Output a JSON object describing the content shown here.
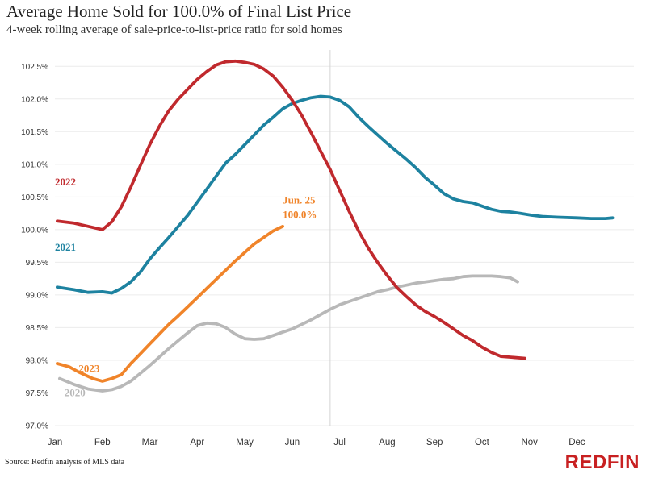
{
  "title": "Average Home Sold for 100.0% of Final List Price",
  "subtitle": "4-week rolling average of sale-price-to-list-price ratio for sold homes",
  "source": "Source: Redfin analysis of MLS data",
  "brand": {
    "name": "REDFIN",
    "color": "#c82021"
  },
  "annotation": {
    "line1": "Jun. 25",
    "line2": "100.0%",
    "color": "#f0842a"
  },
  "chart_data": {
    "type": "line",
    "ylim": [
      97.0,
      102.75
    ],
    "xlim": [
      1,
      13.2
    ],
    "y_ticks": [
      {
        "value": 97.0,
        "label": "97.0%"
      },
      {
        "value": 97.5,
        "label": "97.5%"
      },
      {
        "value": 98.0,
        "label": "98.0%"
      },
      {
        "value": 98.5,
        "label": "98.5%"
      },
      {
        "value": 99.0,
        "label": "99.0%"
      },
      {
        "value": 99.5,
        "label": "99.5%"
      },
      {
        "value": 100.0,
        "label": "100.0%"
      },
      {
        "value": 100.5,
        "label": "100.5%"
      },
      {
        "value": 101.0,
        "label": "101.0%"
      },
      {
        "value": 101.5,
        "label": "101.5%"
      },
      {
        "value": 102.0,
        "label": "102.0%"
      },
      {
        "value": 102.5,
        "label": "102.5%"
      }
    ],
    "x_ticks": [
      {
        "value": 1,
        "label": "Jan"
      },
      {
        "value": 2,
        "label": "Feb"
      },
      {
        "value": 3,
        "label": "Mar"
      },
      {
        "value": 4,
        "label": "Apr"
      },
      {
        "value": 5,
        "label": "May"
      },
      {
        "value": 6,
        "label": "Jun"
      },
      {
        "value": 7,
        "label": "Jul"
      },
      {
        "value": 8,
        "label": "Aug"
      },
      {
        "value": 9,
        "label": "Sep"
      },
      {
        "value": 10,
        "label": "Oct"
      },
      {
        "value": 11,
        "label": "Nov"
      },
      {
        "value": 12,
        "label": "Dec"
      }
    ],
    "reference_line_x": 6.8,
    "grid": "horizontal",
    "series": [
      {
        "name": "2022",
        "color": "#c0292d",
        "points": [
          [
            1.05,
            100.13
          ],
          [
            1.4,
            100.1
          ],
          [
            1.7,
            100.05
          ],
          [
            2.0,
            100.0
          ],
          [
            2.2,
            100.12
          ],
          [
            2.4,
            100.35
          ],
          [
            2.6,
            100.65
          ],
          [
            2.8,
            100.98
          ],
          [
            3.0,
            101.3
          ],
          [
            3.2,
            101.58
          ],
          [
            3.4,
            101.82
          ],
          [
            3.6,
            102.0
          ],
          [
            3.8,
            102.15
          ],
          [
            4.0,
            102.3
          ],
          [
            4.2,
            102.42
          ],
          [
            4.4,
            102.52
          ],
          [
            4.6,
            102.57
          ],
          [
            4.8,
            102.58
          ],
          [
            5.0,
            102.56
          ],
          [
            5.2,
            102.53
          ],
          [
            5.4,
            102.46
          ],
          [
            5.6,
            102.35
          ],
          [
            5.8,
            102.18
          ],
          [
            6.0,
            101.98
          ],
          [
            6.2,
            101.75
          ],
          [
            6.4,
            101.48
          ],
          [
            6.6,
            101.2
          ],
          [
            6.8,
            100.92
          ],
          [
            7.0,
            100.6
          ],
          [
            7.2,
            100.28
          ],
          [
            7.4,
            99.98
          ],
          [
            7.6,
            99.72
          ],
          [
            7.8,
            99.5
          ],
          [
            8.0,
            99.3
          ],
          [
            8.2,
            99.12
          ],
          [
            8.4,
            98.98
          ],
          [
            8.6,
            98.85
          ],
          [
            8.8,
            98.75
          ],
          [
            9.0,
            98.67
          ],
          [
            9.2,
            98.58
          ],
          [
            9.4,
            98.48
          ],
          [
            9.6,
            98.38
          ],
          [
            9.8,
            98.3
          ],
          [
            10.0,
            98.2
          ],
          [
            10.2,
            98.12
          ],
          [
            10.4,
            98.06
          ],
          [
            10.9,
            98.03
          ]
        ]
      },
      {
        "name": "2021",
        "color": "#1d82a0",
        "points": [
          [
            1.05,
            99.12
          ],
          [
            1.4,
            99.08
          ],
          [
            1.7,
            99.04
          ],
          [
            2.0,
            99.05
          ],
          [
            2.2,
            99.03
          ],
          [
            2.4,
            99.1
          ],
          [
            2.6,
            99.2
          ],
          [
            2.8,
            99.35
          ],
          [
            3.0,
            99.55
          ],
          [
            3.2,
            99.72
          ],
          [
            3.4,
            99.88
          ],
          [
            3.6,
            100.05
          ],
          [
            3.8,
            100.22
          ],
          [
            4.0,
            100.42
          ],
          [
            4.2,
            100.62
          ],
          [
            4.4,
            100.82
          ],
          [
            4.6,
            101.02
          ],
          [
            4.8,
            101.15
          ],
          [
            5.0,
            101.3
          ],
          [
            5.2,
            101.45
          ],
          [
            5.4,
            101.6
          ],
          [
            5.6,
            101.72
          ],
          [
            5.8,
            101.85
          ],
          [
            6.0,
            101.93
          ],
          [
            6.2,
            101.98
          ],
          [
            6.4,
            102.02
          ],
          [
            6.6,
            102.04
          ],
          [
            6.8,
            102.03
          ],
          [
            7.0,
            101.98
          ],
          [
            7.2,
            101.88
          ],
          [
            7.4,
            101.72
          ],
          [
            7.6,
            101.58
          ],
          [
            7.8,
            101.45
          ],
          [
            8.0,
            101.32
          ],
          [
            8.2,
            101.2
          ],
          [
            8.4,
            101.08
          ],
          [
            8.6,
            100.95
          ],
          [
            8.8,
            100.8
          ],
          [
            9.0,
            100.68
          ],
          [
            9.2,
            100.55
          ],
          [
            9.4,
            100.47
          ],
          [
            9.6,
            100.43
          ],
          [
            9.8,
            100.41
          ],
          [
            10.0,
            100.36
          ],
          [
            10.2,
            100.31
          ],
          [
            10.4,
            100.28
          ],
          [
            10.6,
            100.27
          ],
          [
            10.8,
            100.25
          ],
          [
            11.05,
            100.22
          ],
          [
            11.3,
            100.2
          ],
          [
            11.6,
            100.19
          ],
          [
            12.0,
            100.18
          ],
          [
            12.3,
            100.17
          ],
          [
            12.6,
            100.17
          ],
          [
            12.75,
            100.18
          ]
        ]
      },
      {
        "name": "2023",
        "color": "#f0842a",
        "points": [
          [
            1.05,
            97.95
          ],
          [
            1.3,
            97.9
          ],
          [
            1.5,
            97.82
          ],
          [
            1.8,
            97.72
          ],
          [
            2.0,
            97.68
          ],
          [
            2.2,
            97.72
          ],
          [
            2.4,
            97.78
          ],
          [
            2.6,
            97.95
          ],
          [
            2.8,
            98.1
          ],
          [
            3.0,
            98.25
          ],
          [
            3.2,
            98.4
          ],
          [
            3.4,
            98.55
          ],
          [
            3.6,
            98.68
          ],
          [
            3.8,
            98.82
          ],
          [
            4.0,
            98.96
          ],
          [
            4.2,
            99.1
          ],
          [
            4.4,
            99.24
          ],
          [
            4.6,
            99.38
          ],
          [
            4.8,
            99.52
          ],
          [
            5.0,
            99.65
          ],
          [
            5.2,
            99.78
          ],
          [
            5.4,
            99.88
          ],
          [
            5.6,
            99.98
          ],
          [
            5.8,
            100.05
          ]
        ]
      },
      {
        "name": "2020",
        "color": "#b8b8b8",
        "points": [
          [
            1.1,
            97.72
          ],
          [
            1.4,
            97.63
          ],
          [
            1.7,
            97.56
          ],
          [
            2.0,
            97.53
          ],
          [
            2.2,
            97.55
          ],
          [
            2.4,
            97.6
          ],
          [
            2.6,
            97.68
          ],
          [
            2.8,
            97.8
          ],
          [
            3.0,
            97.92
          ],
          [
            3.2,
            98.05
          ],
          [
            3.4,
            98.18
          ],
          [
            3.6,
            98.3
          ],
          [
            3.8,
            98.42
          ],
          [
            4.0,
            98.53
          ],
          [
            4.2,
            98.57
          ],
          [
            4.4,
            98.56
          ],
          [
            4.6,
            98.5
          ],
          [
            4.8,
            98.4
          ],
          [
            5.0,
            98.33
          ],
          [
            5.2,
            98.32
          ],
          [
            5.4,
            98.33
          ],
          [
            5.6,
            98.38
          ],
          [
            5.8,
            98.43
          ],
          [
            6.0,
            98.48
          ],
          [
            6.2,
            98.55
          ],
          [
            6.4,
            98.62
          ],
          [
            6.6,
            98.7
          ],
          [
            6.8,
            98.78
          ],
          [
            7.0,
            98.85
          ],
          [
            7.2,
            98.9
          ],
          [
            7.4,
            98.95
          ],
          [
            7.6,
            99.0
          ],
          [
            7.8,
            99.05
          ],
          [
            8.0,
            99.08
          ],
          [
            8.2,
            99.12
          ],
          [
            8.4,
            99.15
          ],
          [
            8.6,
            99.18
          ],
          [
            8.8,
            99.2
          ],
          [
            9.0,
            99.22
          ],
          [
            9.2,
            99.24
          ],
          [
            9.4,
            99.25
          ],
          [
            9.6,
            99.28
          ],
          [
            9.8,
            99.29
          ],
          [
            10.0,
            99.29
          ],
          [
            10.2,
            99.29
          ],
          [
            10.4,
            99.28
          ],
          [
            10.6,
            99.26
          ],
          [
            10.75,
            99.2
          ]
        ]
      }
    ],
    "series_labels": [
      {
        "series": "2022",
        "text": "2022",
        "x": 1.0,
        "y": 100.68,
        "color": "#c0292d"
      },
      {
        "series": "2021",
        "text": "2021",
        "x": 1.0,
        "y": 99.68,
        "color": "#1d82a0"
      },
      {
        "series": "2023",
        "text": "2023",
        "x": 1.5,
        "y": 97.82,
        "color": "#f0842a"
      },
      {
        "series": "2020",
        "text": "2020",
        "x": 1.2,
        "y": 97.45,
        "color": "#b8b8b8"
      }
    ]
  }
}
